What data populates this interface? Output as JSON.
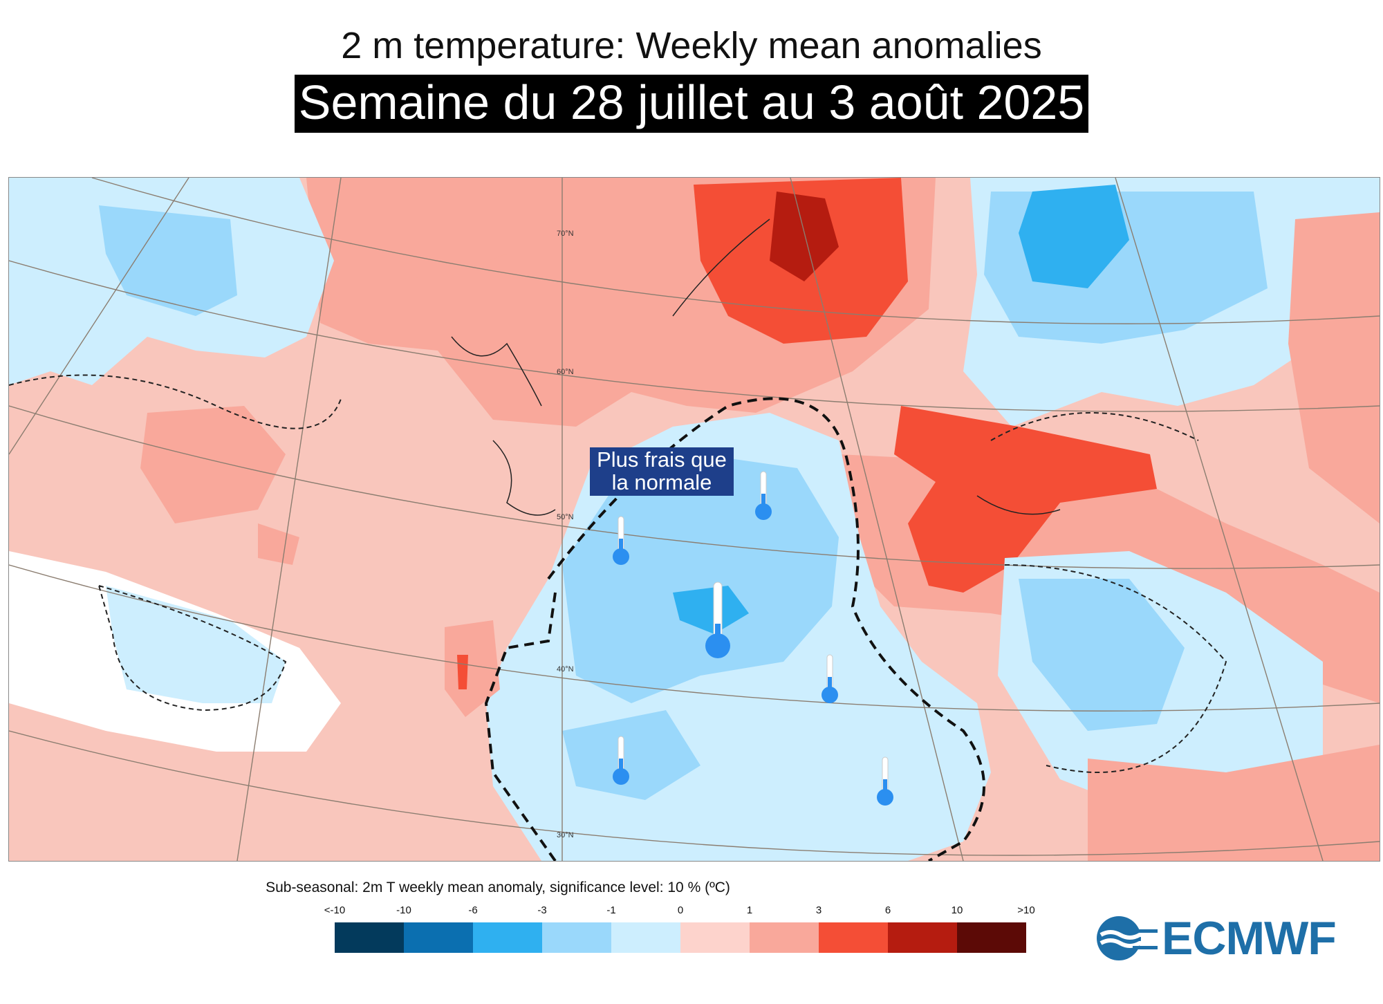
{
  "title": "2 m temperature: Weekly mean anomalies",
  "subtitle": "Semaine du 28 juillet au 3 août 2025",
  "annotation": "Plus frais que la normale",
  "latitude_labels": [
    "70°N",
    "60°N",
    "50°N",
    "40°N",
    "30°N"
  ],
  "legend": {
    "title": "Sub-seasonal: 2m T weekly mean anomaly, significance level: 10 % (ºC)",
    "tick_labels": [
      "<-10",
      "-10",
      "-6",
      "-3",
      "-1",
      "0",
      "1",
      "3",
      "6",
      "10",
      ">10"
    ],
    "colors": [
      "#033a5c",
      "#0b6fb0",
      "#2fb0f0",
      "#9ad8fb",
      "#cdeefe",
      "#fdd3cc",
      "#f9a89b",
      "#f44e36",
      "#b51c10",
      "#5c0a06"
    ]
  },
  "logo": "ECMWF",
  "colors": {
    "cold_label_bg": "#1e3f8a",
    "thermometer_fill": "#2b8ff0"
  }
}
